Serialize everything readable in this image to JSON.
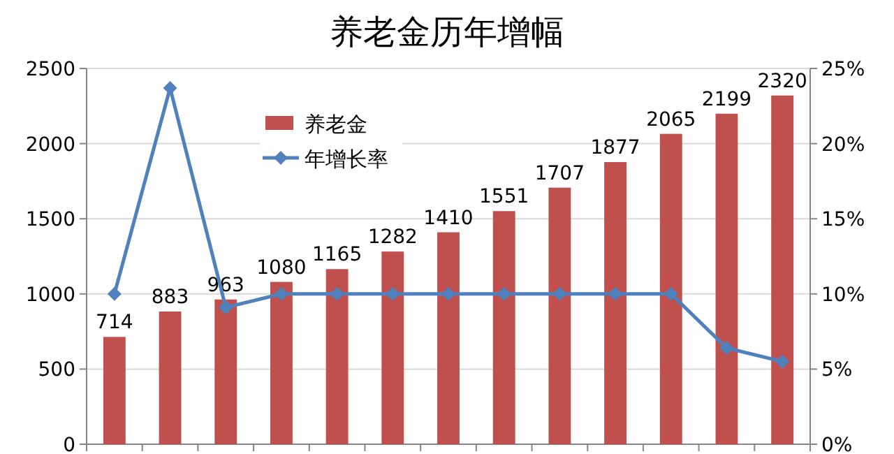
{
  "chart_data": {
    "type": "bar",
    "title": "养老金历年增幅",
    "categories": [
      null,
      null,
      null,
      null,
      null,
      null,
      null,
      null,
      null,
      null,
      null,
      null,
      null
    ],
    "series": [
      {
        "name": "养老金",
        "color": "#c0504d",
        "values": [
          714,
          883,
          963,
          1080,
          1165,
          1282,
          1410,
          1551,
          1707,
          1877,
          2065,
          2199,
          2320
        ],
        "value_labels": [
          "714",
          "883",
          "963",
          "1080",
          "1165",
          "1282",
          "1410",
          "1551",
          "1707",
          "1877",
          "2065",
          "2199",
          "2320"
        ]
      },
      {
        "name": "年增长率",
        "type": "line",
        "axis": "y2",
        "color": "#4f81bd",
        "marker": "diamond",
        "values": [
          10,
          23.7,
          9.1,
          10,
          10,
          10,
          10,
          10,
          10,
          10,
          10,
          6.4,
          5.5
        ]
      }
    ],
    "ylim": [
      0,
      2500
    ],
    "yticks": [
      0,
      500,
      1000,
      1500,
      2000,
      2500
    ],
    "y2lim": [
      0,
      25
    ],
    "y2ticks": [
      {
        "value": 0,
        "label": "0%"
      },
      {
        "value": 5,
        "label": "5%"
      },
      {
        "value": 10,
        "label": "10%"
      },
      {
        "value": 15,
        "label": "15%"
      },
      {
        "value": 20,
        "label": "20%"
      },
      {
        "value": 25,
        "label": "25%"
      }
    ],
    "grid": "y",
    "legend": "top left"
  }
}
